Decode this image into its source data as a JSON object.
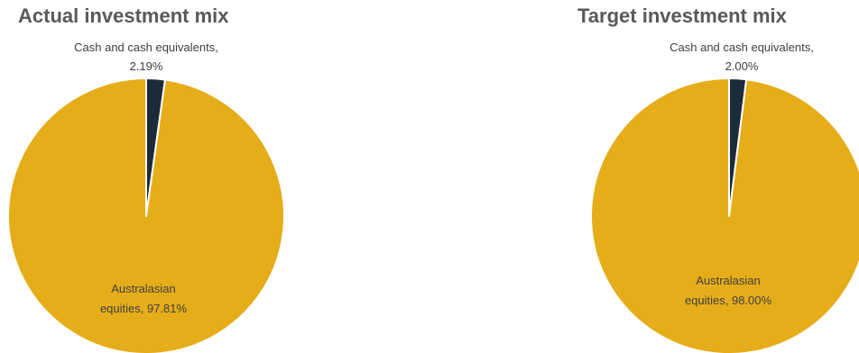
{
  "chart_data": [
    {
      "type": "pie",
      "title": "Actual investment mix",
      "slices": [
        {
          "label": "Cash and cash equivalents",
          "value": 2.19,
          "display": "2.19%",
          "color": "#1c2b3a"
        },
        {
          "label": "Australasian equities",
          "value": 97.81,
          "display": "97.81%",
          "color": "#e6ad1a"
        }
      ],
      "legend": "none"
    },
    {
      "type": "pie",
      "title": "Target investment mix",
      "slices": [
        {
          "label": "Cash and cash equivalents",
          "value": 2.0,
          "display": "2.00%",
          "color": "#1c2b3a"
        },
        {
          "label": "Australasian equities",
          "value": 98.0,
          "display": "98.00%",
          "color": "#e6ad1a"
        }
      ],
      "legend": "none"
    }
  ]
}
